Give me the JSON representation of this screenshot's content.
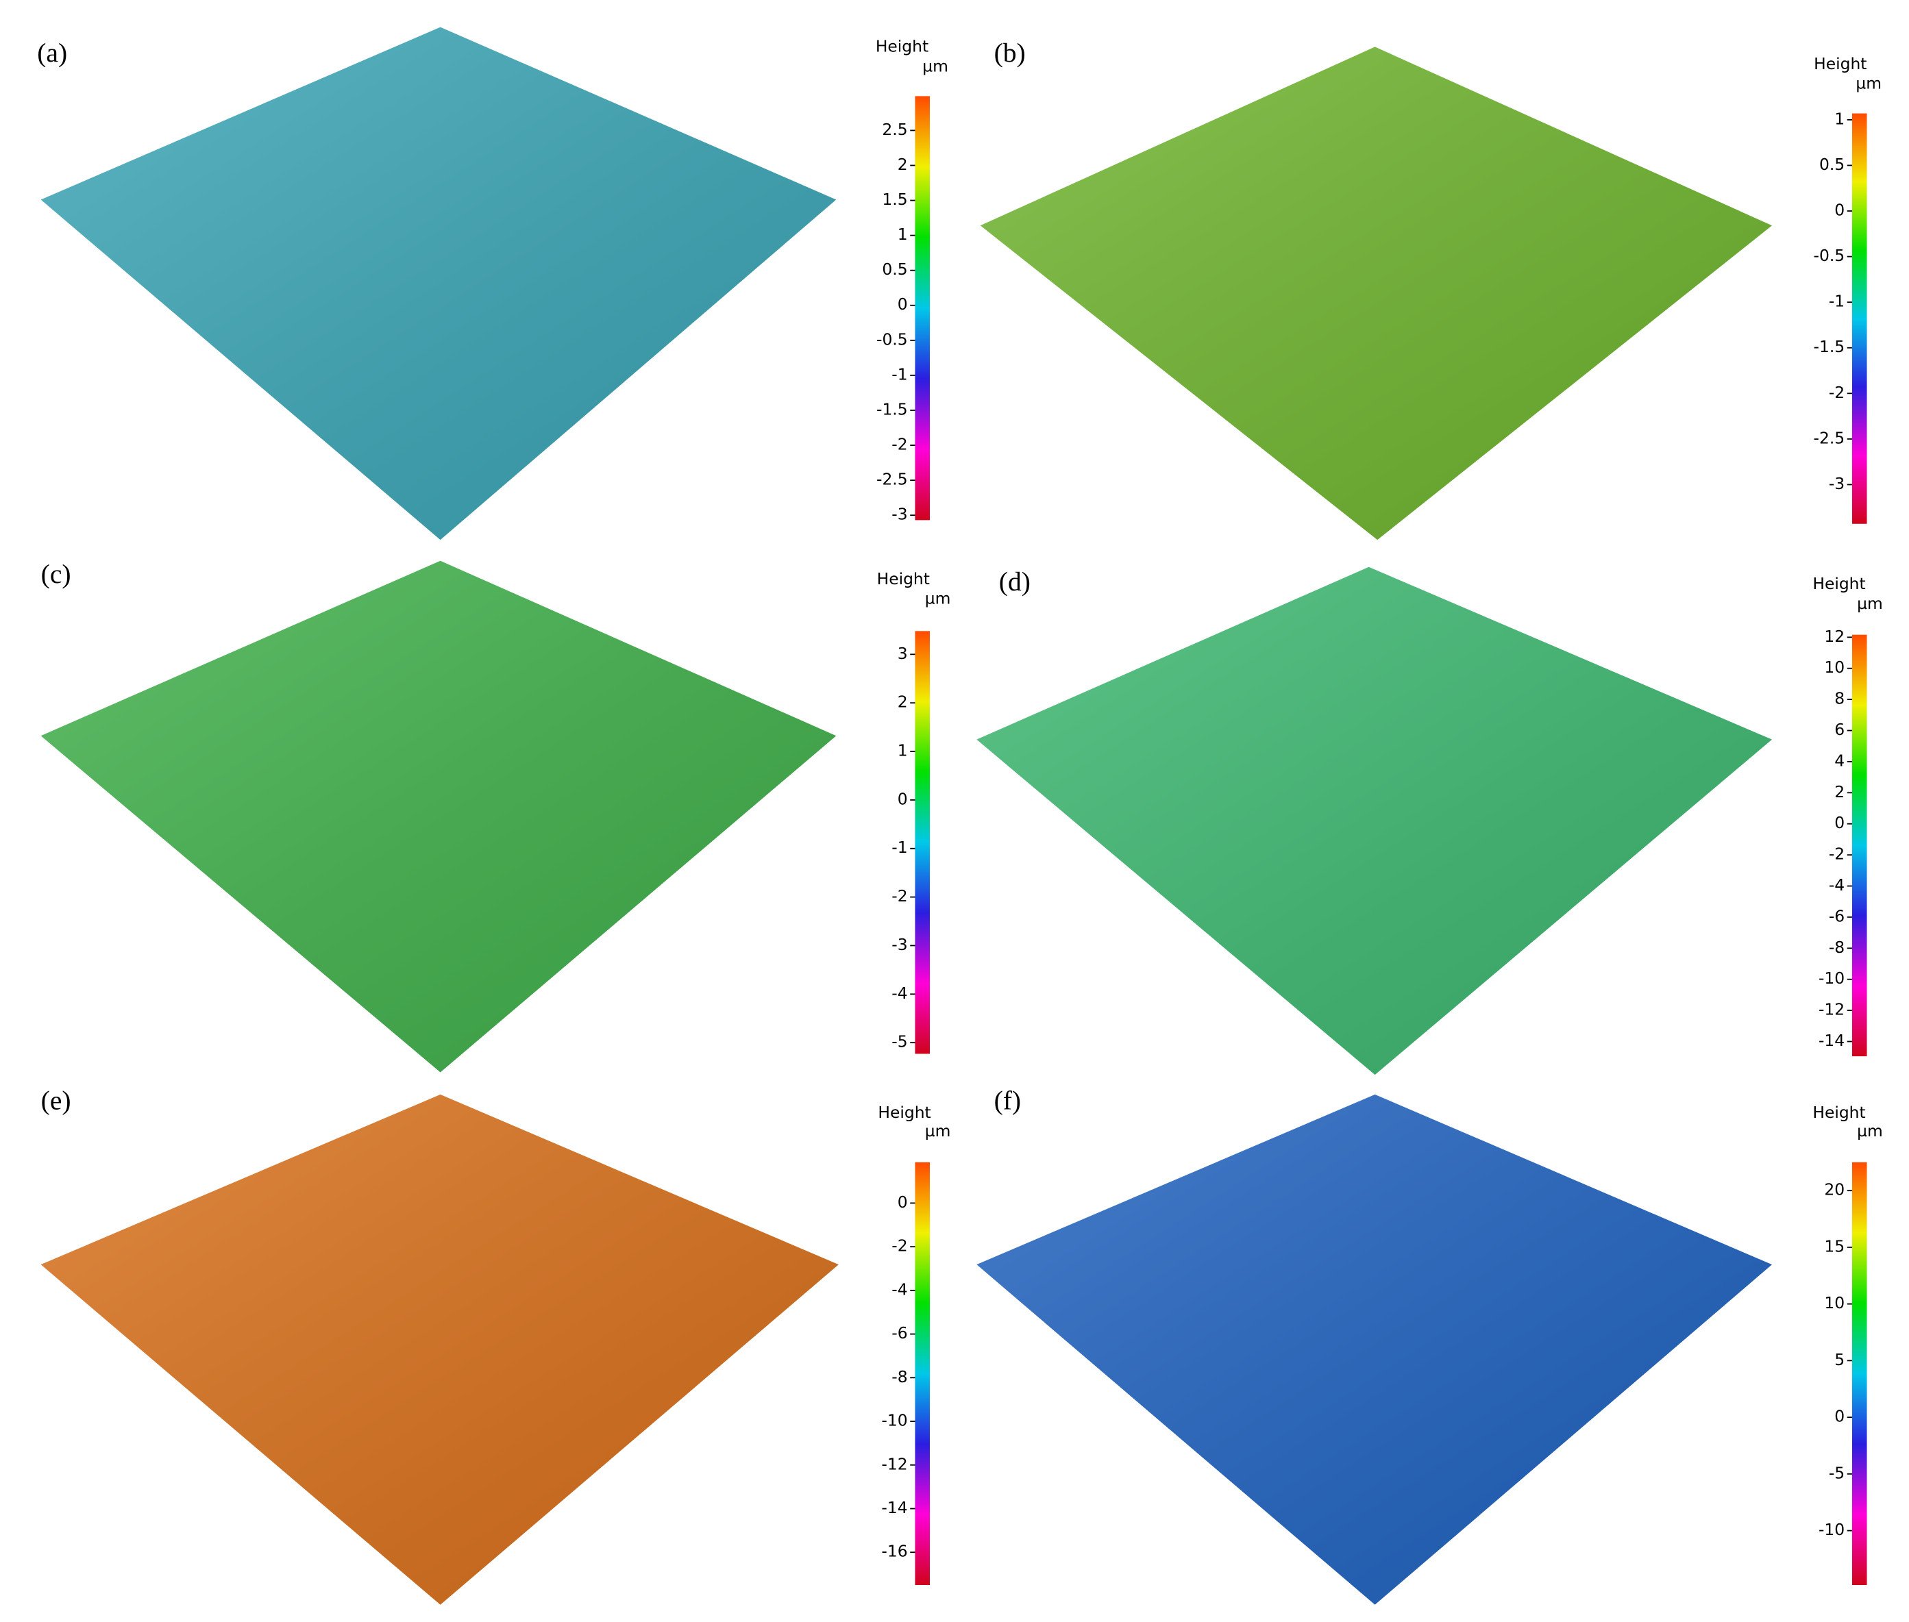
{
  "chart_data": [
    {
      "type": "surface3d",
      "label": "(a)",
      "colorbar_title": "Height",
      "colorbar_unit": "µm",
      "surface_color": "#3aa5b5",
      "clim": [
        -3.07,
        2.99
      ],
      "cticks": [
        2.5,
        2,
        1.5,
        1,
        0.5,
        0,
        -0.5,
        -1,
        -1.5,
        -2,
        -2.5,
        -3
      ],
      "colormap": [
        "#d0021b",
        "#ff00d8",
        "#2a1ee0",
        "#00c8e8",
        "#00e000",
        "#f0f000",
        "#ff4a00"
      ]
    },
    {
      "type": "surface3d",
      "label": "(b)",
      "colorbar_title": "Height",
      "colorbar_unit": "µm",
      "surface_color": "#6fb52e",
      "clim": [
        -3.43,
        1.07
      ],
      "cticks": [
        1,
        0.5,
        0,
        -0.5,
        -1,
        -1.5,
        -2,
        -2.5,
        -3
      ],
      "colormap": [
        "#d0021b",
        "#ff00d8",
        "#2a1ee0",
        "#00c8e8",
        "#00e000",
        "#f0f000",
        "#ff4a00"
      ]
    },
    {
      "type": "surface3d",
      "label": "(c)",
      "colorbar_title": "Height",
      "colorbar_unit": "µm",
      "surface_color": "#3fb04a",
      "clim": [
        -5.23,
        3.48
      ],
      "cticks": [
        3,
        2,
        1,
        0,
        -1,
        -2,
        -3,
        -4,
        -5
      ],
      "colormap": [
        "#d0021b",
        "#ff00d8",
        "#2a1ee0",
        "#00c8e8",
        "#00e000",
        "#f0f000",
        "#ff4a00"
      ]
    },
    {
      "type": "surface3d",
      "label": "(d)",
      "colorbar_title": "Height",
      "colorbar_unit": "µm",
      "surface_color": "#3cb870",
      "clim": [
        -14.95,
        12.16
      ],
      "cticks": [
        12,
        10,
        8,
        6,
        4,
        2,
        0,
        -2,
        -4,
        -6,
        -8,
        -10,
        -12,
        -14
      ],
      "colormap": [
        "#d0021b",
        "#ff00d8",
        "#2a1ee0",
        "#00c8e8",
        "#00e000",
        "#f0f000",
        "#ff4a00"
      ]
    },
    {
      "type": "surface3d",
      "label": "(e)",
      "colorbar_title": "Height",
      "colorbar_unit": "µm",
      "surface_color": "#d9701a",
      "clim": [
        -17.5,
        1.87
      ],
      "cticks": [
        0,
        -2,
        -4,
        -6,
        -8,
        -10,
        -12,
        -14,
        -16
      ],
      "colormap": [
        "#d0021b",
        "#ff00d8",
        "#2a1ee0",
        "#00c8e8",
        "#00e000",
        "#f0f000",
        "#ff4a00"
      ]
    },
    {
      "type": "surface3d",
      "label": "(f)",
      "colorbar_title": "Height",
      "colorbar_unit": "µm",
      "surface_color": "#1f62c0",
      "clim": [
        -14.8,
        22.5
      ],
      "cticks": [
        20,
        15,
        10,
        5,
        0,
        -5,
        -10
      ],
      "colormap": [
        "#d0021b",
        "#ff00d8",
        "#2a1ee0",
        "#00c8e8",
        "#00e000",
        "#f0f000",
        "#ff4a00"
      ]
    }
  ]
}
